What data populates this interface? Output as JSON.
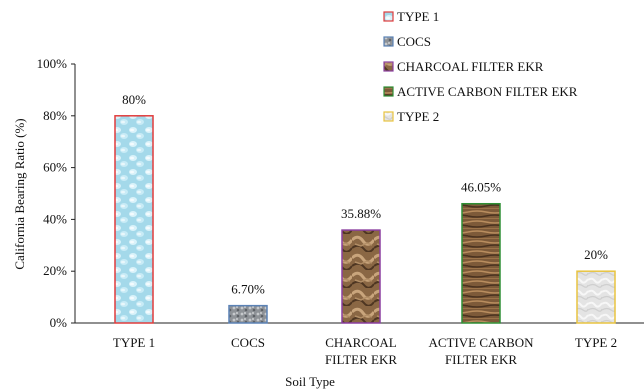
{
  "chart_data": {
    "type": "bar",
    "title": "",
    "xlabel": "Soil Type",
    "ylabel": "California Bearing Ratio (%)",
    "ylim": [
      0,
      100
    ],
    "yticks": [
      "0%",
      "20%",
      "40%",
      "60%",
      "80%",
      "100%"
    ],
    "yticks_values": [
      0,
      20,
      40,
      60,
      80,
      100
    ],
    "grid": false,
    "legend_position": "top-right",
    "categories": [
      "TYPE 1",
      "COCS",
      "CHARCOAL FILTER EKR",
      "ACTIVE CARBON FILTER EKR",
      "TYPE 2"
    ],
    "category_lines": [
      [
        "TYPE 1"
      ],
      [
        "COCS"
      ],
      [
        "CHARCOAL",
        "FILTER EKR"
      ],
      [
        "ACTIVE CARBON",
        "FILTER EKR"
      ],
      [
        "TYPE 2"
      ]
    ],
    "values": [
      80,
      6.7,
      35.88,
      46.05,
      20
    ],
    "value_labels": [
      "80%",
      "6.70%",
      "35.88%",
      "46.05%",
      "20%"
    ],
    "legend": [
      "TYPE 1",
      "COCS",
      "CHARCOAL FILTER EKR",
      "ACTIVE CARBON FILTER EKR",
      "TYPE 2"
    ],
    "border_colors": [
      "#e03c3c",
      "#5b82b5",
      "#8b3fa0",
      "#2f8f35",
      "#e8c440"
    ],
    "fill_colors": [
      "#a9dceb",
      "#9a9ea3",
      "#7a5a3a",
      "#7b5a3b",
      "#e6e6e6"
    ]
  }
}
